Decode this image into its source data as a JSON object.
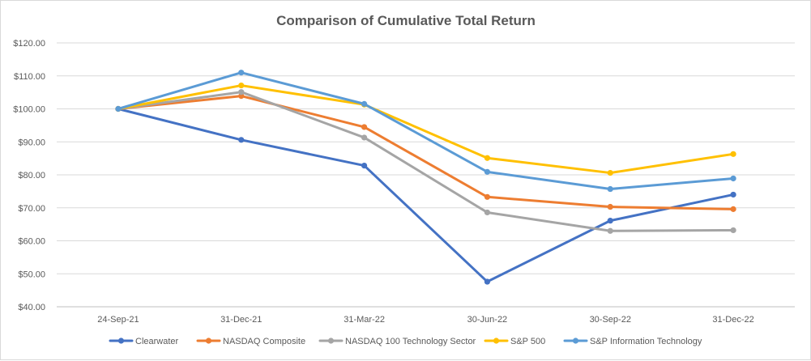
{
  "chart_data": {
    "type": "line",
    "title": "Comparison of Cumulative Total Return",
    "xlabel": "",
    "ylabel": "",
    "categories": [
      "24-Sep-21",
      "31-Dec-21",
      "31-Mar-22",
      "30-Jun-22",
      "30-Sep-22",
      "31-Dec-22"
    ],
    "ylim": [
      40,
      120
    ],
    "yticks": [
      "$40.00",
      "$50.00",
      "$60.00",
      "$70.00",
      "$80.00",
      "$90.00",
      "$100.00",
      "$110.00",
      "$120.00"
    ],
    "grid": true,
    "legend_position": "bottom",
    "series": [
      {
        "name": "Clearwater",
        "color": "#4472c4",
        "values": [
          100,
          90.6,
          82.8,
          47.6,
          66.1,
          74.0
        ]
      },
      {
        "name": "NASDAQ Composite",
        "color": "#ed7d31",
        "values": [
          100,
          103.9,
          94.5,
          73.3,
          70.3,
          69.6
        ]
      },
      {
        "name": "NASDAQ 100 Technology Sector",
        "color": "#a5a5a5",
        "values": [
          100,
          105.1,
          91.3,
          68.6,
          63.0,
          63.2
        ]
      },
      {
        "name": "S&P 500",
        "color": "#ffc000",
        "values": [
          100,
          107.1,
          101.3,
          85.1,
          80.6,
          86.3
        ]
      },
      {
        "name": "S&P Information Technology",
        "color": "#5b9bd5",
        "values": [
          100,
          111.0,
          101.5,
          80.9,
          75.7,
          78.9
        ]
      }
    ]
  }
}
